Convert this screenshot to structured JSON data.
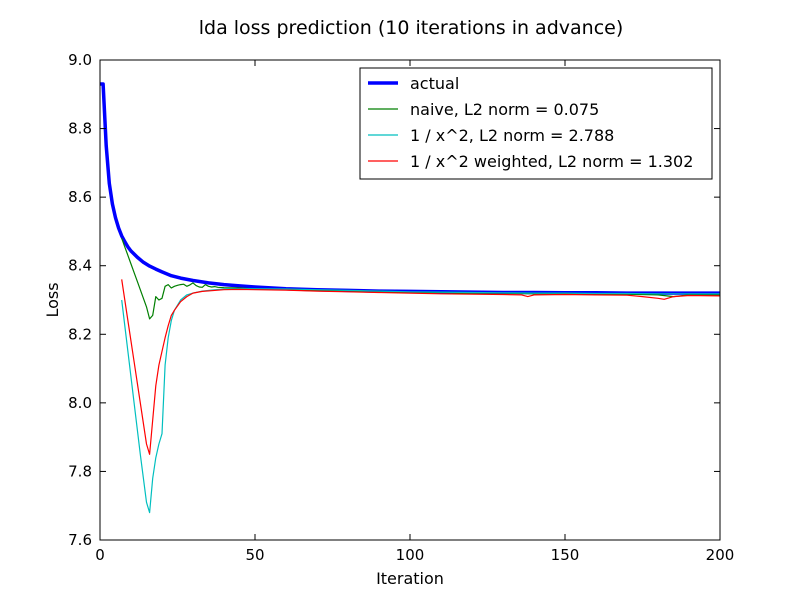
{
  "chart_data": {
    "type": "line",
    "title": "lda loss prediction (10 iterations in advance)",
    "xlabel": "Iteration",
    "ylabel": "Loss",
    "xlim": [
      0,
      200
    ],
    "ylim": [
      7.6,
      9.0
    ],
    "xticks": [
      0,
      50,
      100,
      150,
      200
    ],
    "yticks": [
      7.6,
      7.8,
      8.0,
      8.2,
      8.4,
      8.6,
      8.8,
      9.0
    ],
    "xtick_labels": [
      "0",
      "50",
      "100",
      "150",
      "200"
    ],
    "ytick_labels": [
      "7.6",
      "7.8",
      "8.0",
      "8.2",
      "8.4",
      "8.6",
      "8.8",
      "9.0"
    ],
    "grid": false,
    "legend_position": "top-right",
    "series": [
      {
        "name": "actual",
        "color": "#0000ff",
        "x": [
          0,
          1,
          2,
          3,
          4,
          5,
          6,
          7,
          8,
          9,
          10,
          12,
          14,
          16,
          18,
          20,
          23,
          26,
          30,
          35,
          40,
          45,
          50,
          60,
          70,
          80,
          90,
          100,
          110,
          120,
          130,
          140,
          150,
          160,
          170,
          180,
          190,
          200
        ],
        "values": [
          8.93,
          8.93,
          8.75,
          8.64,
          8.58,
          8.54,
          8.51,
          8.487,
          8.47,
          8.455,
          8.443,
          8.425,
          8.41,
          8.399,
          8.39,
          8.382,
          8.371,
          8.364,
          8.357,
          8.35,
          8.345,
          8.341,
          8.338,
          8.333,
          8.33,
          8.328,
          8.326,
          8.325,
          8.324,
          8.323,
          8.322,
          8.322,
          8.321,
          8.321,
          8.32,
          8.32,
          8.32,
          8.32
        ]
      },
      {
        "name": "naive, L2 norm = 0.075",
        "color": "#007f00",
        "x": [
          7,
          8,
          9,
          10,
          11,
          12,
          13,
          14,
          15,
          16,
          17,
          18,
          19,
          20,
          21,
          22,
          23,
          24,
          25,
          26,
          27,
          28,
          29,
          30,
          31,
          32,
          33,
          34,
          35,
          36,
          37,
          38,
          40,
          45,
          50,
          60,
          70,
          80,
          90,
          100,
          110,
          120,
          130,
          140,
          150,
          160,
          170,
          180,
          185,
          190,
          200
        ],
        "values": [
          8.48,
          8.455,
          8.43,
          8.405,
          8.38,
          8.355,
          8.33,
          8.305,
          8.28,
          8.245,
          8.255,
          8.31,
          8.3,
          8.305,
          8.34,
          8.345,
          8.335,
          8.34,
          8.343,
          8.345,
          8.346,
          8.34,
          8.344,
          8.35,
          8.342,
          8.338,
          8.337,
          8.345,
          8.34,
          8.338,
          8.339,
          8.337,
          8.336,
          8.335,
          8.332,
          8.33,
          8.328,
          8.327,
          8.325,
          8.322,
          8.322,
          8.32,
          8.32,
          8.318,
          8.319,
          8.318,
          8.317,
          8.315,
          8.31,
          8.315,
          8.315
        ]
      },
      {
        "name": "1 / x^2, L2 norm = 2.788",
        "color": "#00bfbf",
        "x": [
          7,
          9,
          11,
          13,
          15,
          16,
          17,
          18,
          19,
          20,
          21,
          22,
          23,
          24,
          26,
          28,
          30,
          33,
          36,
          40,
          45,
          50,
          60,
          70,
          80,
          90,
          100,
          110,
          120,
          130,
          140,
          150,
          160,
          170,
          180,
          190,
          200
        ],
        "values": [
          8.3,
          8.15,
          8.0,
          7.85,
          7.71,
          7.68,
          7.78,
          7.84,
          7.88,
          7.91,
          8.11,
          8.19,
          8.24,
          8.27,
          8.3,
          8.315,
          8.32,
          8.326,
          8.329,
          8.332,
          8.333,
          8.333,
          8.332,
          8.33,
          8.328,
          8.326,
          8.324,
          8.323,
          8.322,
          8.321,
          8.32,
          8.32,
          8.319,
          8.319,
          8.318,
          8.318,
          8.318
        ]
      },
      {
        "name": "1 / x^2 weighted, L2 norm = 1.302",
        "color": "#ff0000",
        "x": [
          7,
          9,
          11,
          13,
          15,
          16,
          17,
          18,
          19,
          20,
          21,
          22,
          23,
          24,
          26,
          28,
          30,
          33,
          36,
          40,
          45,
          50,
          60,
          70,
          80,
          90,
          100,
          110,
          120,
          130,
          136,
          138,
          140,
          150,
          160,
          170,
          175,
          180,
          182,
          185,
          190,
          200
        ],
        "values": [
          8.36,
          8.24,
          8.12,
          8.0,
          7.88,
          7.85,
          7.95,
          8.05,
          8.11,
          8.15,
          8.19,
          8.225,
          8.255,
          8.27,
          8.295,
          8.31,
          8.32,
          8.325,
          8.327,
          8.33,
          8.331,
          8.33,
          8.329,
          8.326,
          8.324,
          8.322,
          8.32,
          8.318,
          8.317,
          8.316,
          8.315,
          8.31,
          8.315,
          8.316,
          8.315,
          8.314,
          8.31,
          8.305,
          8.302,
          8.31,
          8.313,
          8.312
        ]
      }
    ]
  }
}
